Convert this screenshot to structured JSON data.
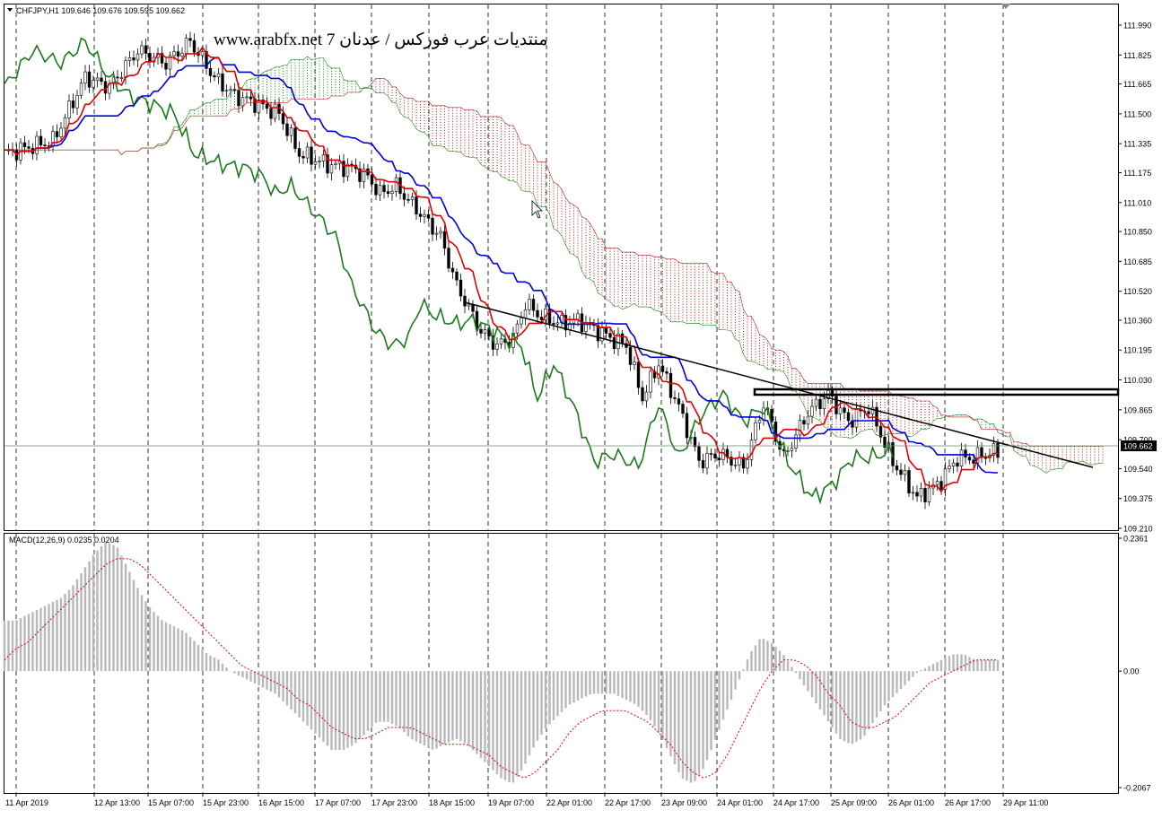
{
  "window": {
    "symbol_header": "CHFJPY,H1  109.646 109.676 109.595 109.662",
    "watermark": "www.arabfx.net 7 منتديات عرب فوركس / عدنان",
    "current_price_label": "109.662"
  },
  "colors": {
    "background": "#ffffff",
    "tenkan": "#e00000",
    "kijun": "#0000dd",
    "chikou": "#1a7a1a",
    "cloud_bear": "#b02020",
    "cloud_bull": "#1a8a1a",
    "trendline": "#000000",
    "histogram": "#b8b8b8",
    "macd_signal": "#e00000",
    "grid": "#000000"
  },
  "chart_data": [
    {
      "type": "candlestick",
      "title": "CHFJPY,H1",
      "ohlc_last": {
        "open": 109.646,
        "high": 109.676,
        "low": 109.595,
        "close": 109.662
      },
      "y_ticks": [
        "111.990",
        "111.825",
        "111.665",
        "111.500",
        "111.335",
        "111.175",
        "111.010",
        "110.850",
        "110.685",
        "110.520",
        "110.360",
        "110.195",
        "110.030",
        "109.865",
        "109.700",
        "109.540",
        "109.375",
        "109.210"
      ],
      "ylim": [
        109.21,
        111.99
      ],
      "x_ticks": [
        "11 Apr 2019",
        "12 Apr 13:00",
        "15 Apr 07:00",
        "15 Apr 23:00",
        "16 Apr 15:00",
        "17 Apr 07:00",
        "17 Apr 23:00",
        "18 Apr 15:00",
        "19 Apr 07:00",
        "22 Apr 01:00",
        "22 Apr 17:00",
        "23 Apr 09:00",
        "24 Apr 01:00",
        "24 Apr 17:00",
        "25 Apr 09:00",
        "26 Apr 01:00",
        "26 Apr 17:00",
        "29 Apr 11:00"
      ],
      "current_price": 109.662,
      "indicators": [
        "Ichimoku Kinko Hyo"
      ],
      "close_path": [
        [
          0,
          111.28
        ],
        [
          12,
          111.35
        ],
        [
          20,
          111.7
        ],
        [
          26,
          111.65
        ],
        [
          33,
          111.85
        ],
        [
          40,
          111.78
        ],
        [
          46,
          111.9
        ],
        [
          52,
          111.7
        ],
        [
          57,
          111.6
        ],
        [
          63,
          111.55
        ],
        [
          68,
          111.5
        ],
        [
          73,
          111.28
        ],
        [
          80,
          111.22
        ],
        [
          86,
          111.2
        ],
        [
          90,
          111.15
        ],
        [
          93,
          111.06
        ],
        [
          97,
          111.1
        ],
        [
          103,
          110.95
        ],
        [
          108,
          110.82
        ],
        [
          112,
          110.55
        ],
        [
          118,
          110.3
        ],
        [
          122,
          110.22
        ],
        [
          126,
          110.26
        ],
        [
          129,
          110.45
        ],
        [
          133,
          110.38
        ],
        [
          138,
          110.34
        ],
        [
          142,
          110.36
        ],
        [
          147,
          110.3
        ],
        [
          151,
          110.25
        ],
        [
          154,
          110.22
        ],
        [
          158,
          109.93
        ],
        [
          162,
          110.12
        ],
        [
          167,
          109.88
        ],
        [
          172,
          109.58
        ],
        [
          177,
          109.62
        ],
        [
          183,
          109.55
        ],
        [
          188,
          109.9
        ],
        [
          193,
          109.6
        ],
        [
          199,
          109.85
        ],
        [
          204,
          109.95
        ],
        [
          209,
          109.8
        ],
        [
          214,
          109.88
        ],
        [
          220,
          109.58
        ],
        [
          226,
          109.38
        ],
        [
          231,
          109.45
        ],
        [
          236,
          109.6
        ],
        [
          240,
          109.6
        ],
        [
          245,
          109.63
        ],
        [
          251,
          109.62
        ],
        [
          254,
          109.7
        ],
        [
          256,
          109.65
        ]
      ],
      "annotations": [
        "Descending trendline from 19 Apr 07:00 (~110.47) to 29 Apr (~109.55)",
        "Horizontal rectangle zone approx. 109.960–109.990 from 24 Apr 17:00 to right edge"
      ]
    },
    {
      "type": "bar",
      "title": "MACD(12,26,9) 0.0235 0.0204",
      "y_ticks": [
        "0.2361",
        "0.00",
        "-0.2067"
      ],
      "ylim": [
        -0.2067,
        0.2361
      ],
      "series": [
        {
          "name": "MACD",
          "style": "histogram",
          "values": [
            0.09,
            0.09,
            0.1,
            0.11,
            0.12,
            0.13,
            0.15,
            0.18,
            0.21,
            0.23,
            0.22,
            0.18,
            0.14,
            0.11,
            0.09,
            0.08,
            0.07,
            0.05,
            0.03,
            0.02,
            0.0,
            -0.01,
            -0.02,
            -0.03,
            -0.04,
            -0.06,
            -0.08,
            -0.1,
            -0.12,
            -0.14,
            -0.14,
            -0.13,
            -0.11,
            -0.09,
            -0.09,
            -0.1,
            -0.12,
            -0.13,
            -0.14,
            -0.13,
            -0.12,
            -0.13,
            -0.15,
            -0.17,
            -0.19,
            -0.2,
            -0.17,
            -0.13,
            -0.1,
            -0.08,
            -0.06,
            -0.05,
            -0.04,
            -0.04,
            -0.04,
            -0.05,
            -0.06,
            -0.08,
            -0.11,
            -0.15,
            -0.19,
            -0.2,
            -0.17,
            -0.12,
            -0.07,
            -0.02,
            0.03,
            0.06,
            0.05,
            0.03,
            0.0,
            -0.03,
            -0.06,
            -0.09,
            -0.12,
            -0.13,
            -0.12,
            -0.09,
            -0.06,
            -0.04,
            -0.02,
            0.0,
            0.01,
            0.02,
            0.03,
            0.03,
            0.02,
            0.02,
            0.02
          ]
        },
        {
          "name": "Signal",
          "style": "dotted",
          "values": [
            0.02,
            0.04,
            0.05,
            0.07,
            0.09,
            0.11,
            0.13,
            0.15,
            0.17,
            0.19,
            0.2,
            0.2,
            0.19,
            0.17,
            0.15,
            0.13,
            0.11,
            0.09,
            0.07,
            0.05,
            0.03,
            0.01,
            0.0,
            -0.01,
            -0.02,
            -0.03,
            -0.05,
            -0.06,
            -0.08,
            -0.1,
            -0.11,
            -0.12,
            -0.12,
            -0.11,
            -0.1,
            -0.1,
            -0.1,
            -0.11,
            -0.12,
            -0.13,
            -0.13,
            -0.13,
            -0.14,
            -0.15,
            -0.17,
            -0.18,
            -0.19,
            -0.18,
            -0.16,
            -0.14,
            -0.11,
            -0.09,
            -0.08,
            -0.07,
            -0.07,
            -0.07,
            -0.08,
            -0.09,
            -0.11,
            -0.13,
            -0.16,
            -0.18,
            -0.19,
            -0.18,
            -0.15,
            -0.11,
            -0.07,
            -0.03,
            0.0,
            0.02,
            0.02,
            0.01,
            -0.01,
            -0.04,
            -0.06,
            -0.09,
            -0.1,
            -0.1,
            -0.09,
            -0.08,
            -0.06,
            -0.04,
            -0.02,
            -0.01,
            0.0,
            0.01,
            0.02,
            0.02,
            0.02
          ]
        }
      ]
    }
  ]
}
